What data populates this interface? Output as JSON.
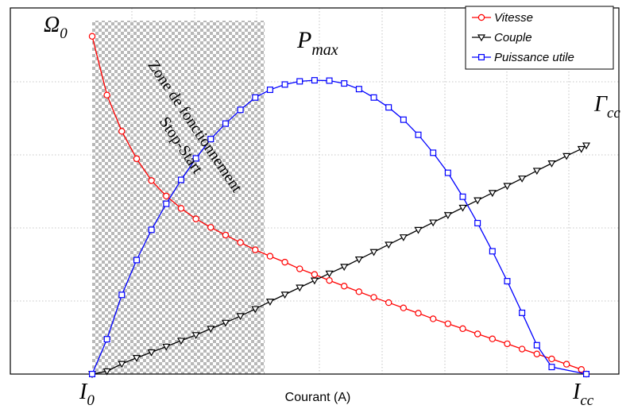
{
  "chart_data": {
    "type": "line",
    "xlabel": "Courant (A)",
    "legend": {
      "placement": "top-right",
      "entries": [
        {
          "name": "Vitesse",
          "color": "#ff0000",
          "marker": "circle"
        },
        {
          "name": "Couple",
          "color": "#000000",
          "marker": "triangle-down"
        },
        {
          "name": "Puissance utile",
          "color": "#0000ff",
          "marker": "square"
        }
      ]
    },
    "annotations": {
      "omega0": {
        "main": "Ω",
        "sub": "0"
      },
      "pmax": {
        "main": "P",
        "sub": "max"
      },
      "gamma_cc": {
        "main": "Γ",
        "sub": "cc"
      },
      "i0": {
        "main": "I",
        "sub": "0"
      },
      "icc": {
        "main": "I",
        "sub": "cc"
      },
      "zone_line1": "Zone de fonctionnement",
      "zone_line2": "Stop-Start"
    },
    "x_range": [
      0,
      1
    ],
    "y_range": [
      0,
      1
    ],
    "grid": true,
    "shaded_zone": {
      "x_start": 0.0,
      "x_end": 0.349
    },
    "series": [
      {
        "name": "Vitesse",
        "points": [
          [
            0.0,
            0.96
          ],
          [
            0.03,
            0.793
          ],
          [
            0.06,
            0.69
          ],
          [
            0.09,
            0.612
          ],
          [
            0.12,
            0.55
          ],
          [
            0.15,
            0.506
          ],
          [
            0.18,
            0.471
          ],
          [
            0.21,
            0.441
          ],
          [
            0.24,
            0.417
          ],
          [
            0.27,
            0.395
          ],
          [
            0.3,
            0.374
          ],
          [
            0.33,
            0.353
          ],
          [
            0.36,
            0.335
          ],
          [
            0.39,
            0.318
          ],
          [
            0.42,
            0.299
          ],
          [
            0.45,
            0.283
          ],
          [
            0.48,
            0.266
          ],
          [
            0.51,
            0.25
          ],
          [
            0.54,
            0.234
          ],
          [
            0.57,
            0.218
          ],
          [
            0.6,
            0.203
          ],
          [
            0.63,
            0.188
          ],
          [
            0.66,
            0.173
          ],
          [
            0.69,
            0.157
          ],
          [
            0.72,
            0.143
          ],
          [
            0.75,
            0.129
          ],
          [
            0.78,
            0.114
          ],
          [
            0.81,
            0.1
          ],
          [
            0.84,
            0.086
          ],
          [
            0.87,
            0.071
          ],
          [
            0.9,
            0.057
          ],
          [
            0.93,
            0.043
          ],
          [
            0.96,
            0.028
          ],
          [
            0.99,
            0.013
          ],
          [
            1.0,
            0.0
          ]
        ]
      },
      {
        "name": "Couple",
        "points": [
          [
            0.0,
            0.0
          ],
          [
            0.03,
            0.008
          ],
          [
            0.06,
            0.029
          ],
          [
            0.09,
            0.046
          ],
          [
            0.12,
            0.062
          ],
          [
            0.15,
            0.078
          ],
          [
            0.18,
            0.095
          ],
          [
            0.21,
            0.111
          ],
          [
            0.24,
            0.129
          ],
          [
            0.27,
            0.146
          ],
          [
            0.3,
            0.165
          ],
          [
            0.33,
            0.185
          ],
          [
            0.36,
            0.206
          ],
          [
            0.39,
            0.226
          ],
          [
            0.42,
            0.246
          ],
          [
            0.45,
            0.266
          ],
          [
            0.48,
            0.286
          ],
          [
            0.51,
            0.305
          ],
          [
            0.54,
            0.326
          ],
          [
            0.57,
            0.347
          ],
          [
            0.6,
            0.368
          ],
          [
            0.63,
            0.389
          ],
          [
            0.66,
            0.41
          ],
          [
            0.69,
            0.431
          ],
          [
            0.72,
            0.452
          ],
          [
            0.75,
            0.473
          ],
          [
            0.78,
            0.494
          ],
          [
            0.81,
            0.515
          ],
          [
            0.84,
            0.535
          ],
          [
            0.87,
            0.556
          ],
          [
            0.9,
            0.578
          ],
          [
            0.93,
            0.599
          ],
          [
            0.96,
            0.62
          ],
          [
            0.99,
            0.64
          ],
          [
            1.0,
            0.65
          ]
        ]
      },
      {
        "name": "Puissance utile",
        "points": [
          [
            0.0,
            0.0
          ],
          [
            0.03,
            0.099
          ],
          [
            0.06,
            0.225
          ],
          [
            0.09,
            0.324
          ],
          [
            0.12,
            0.41
          ],
          [
            0.15,
            0.484
          ],
          [
            0.18,
            0.552
          ],
          [
            0.21,
            0.613
          ],
          [
            0.24,
            0.668
          ],
          [
            0.27,
            0.712
          ],
          [
            0.3,
            0.751
          ],
          [
            0.33,
            0.786
          ],
          [
            0.36,
            0.808
          ],
          [
            0.39,
            0.823
          ],
          [
            0.42,
            0.832
          ],
          [
            0.45,
            0.835
          ],
          [
            0.48,
            0.834
          ],
          [
            0.51,
            0.826
          ],
          [
            0.54,
            0.81
          ],
          [
            0.57,
            0.786
          ],
          [
            0.6,
            0.758
          ],
          [
            0.63,
            0.723
          ],
          [
            0.66,
            0.68
          ],
          [
            0.69,
            0.629
          ],
          [
            0.72,
            0.572
          ],
          [
            0.75,
            0.504
          ],
          [
            0.78,
            0.429
          ],
          [
            0.81,
            0.349
          ],
          [
            0.84,
            0.264
          ],
          [
            0.87,
            0.174
          ],
          [
            0.9,
            0.082
          ],
          [
            0.93,
            0.02
          ],
          [
            1.0,
            0.0
          ]
        ]
      }
    ]
  }
}
